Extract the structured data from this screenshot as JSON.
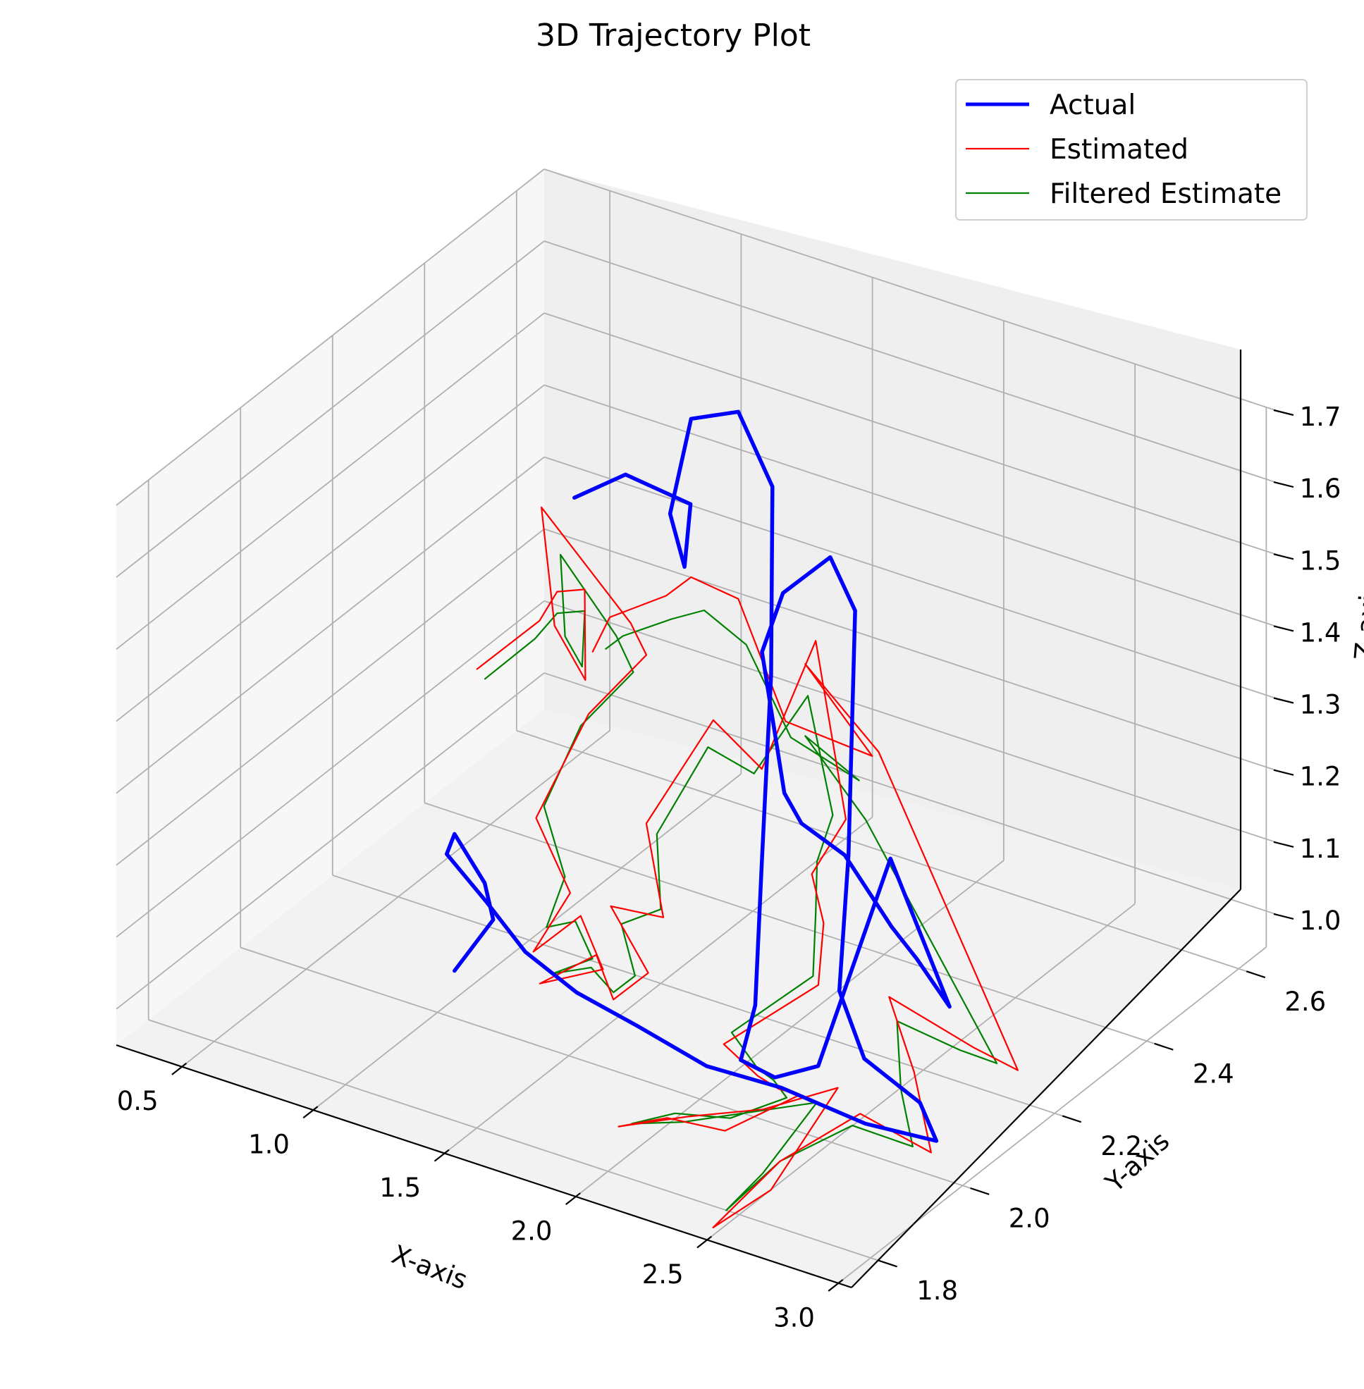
{
  "chart_data": {
    "type": "line",
    "projection": "3d",
    "title": "3D Trajectory Plot",
    "xlabel": "X-axis",
    "ylabel": "Y-axis",
    "zlabel": "Z-axis",
    "xlim": [
      0.25,
      3.05
    ],
    "ylim": [
      1.73,
      2.66
    ],
    "zlim": [
      0.95,
      1.7
    ],
    "x_ticks": [
      "0.5",
      "1.0",
      "1.5",
      "2.0",
      "2.5",
      "3.0"
    ],
    "y_ticks": [
      "1.8",
      "2.0",
      "2.2",
      "2.4",
      "2.6"
    ],
    "z_ticks": [
      "1.0",
      "1.1",
      "1.2",
      "1.3",
      "1.4",
      "1.5",
      "1.6",
      "1.7"
    ],
    "grid": true,
    "legend_position": "top-right",
    "series": [
      {
        "name": "Actual",
        "color": "#0000ff",
        "linewidth": "thick",
        "points": [
          [
            0.47,
            2.6,
            1.3
          ],
          [
            0.7,
            2.58,
            1.37
          ],
          [
            1.0,
            2.55,
            1.38
          ],
          [
            1.1,
            2.48,
            1.34
          ],
          [
            1.15,
            2.42,
            1.45
          ],
          [
            1.3,
            2.38,
            1.62
          ],
          [
            1.55,
            2.34,
            1.68
          ],
          [
            1.75,
            2.3,
            1.62
          ],
          [
            1.85,
            2.24,
            1.4
          ],
          [
            1.92,
            2.18,
            1.18
          ],
          [
            2.0,
            2.12,
            1.02
          ],
          [
            2.05,
            2.06,
            0.98
          ],
          [
            2.25,
            2.02,
            1.0
          ],
          [
            2.45,
            2.0,
            1.05
          ],
          [
            2.55,
            2.1,
            1.3
          ],
          [
            2.6,
            2.2,
            1.05
          ],
          [
            2.3,
            2.3,
            1.03
          ],
          [
            2.1,
            2.36,
            1.02
          ],
          [
            1.85,
            2.4,
            1.07
          ],
          [
            1.65,
            2.42,
            1.08
          ],
          [
            1.55,
            2.44,
            1.1
          ],
          [
            1.5,
            2.42,
            1.3
          ],
          [
            1.65,
            2.38,
            1.42
          ],
          [
            1.9,
            2.34,
            1.52
          ],
          [
            2.1,
            2.28,
            1.5
          ],
          [
            2.18,
            2.22,
            1.2
          ],
          [
            2.25,
            2.16,
            1.05
          ],
          [
            2.45,
            2.1,
            1.01
          ],
          [
            2.75,
            2.05,
            1.01
          ],
          [
            2.9,
            2.0,
            1.0
          ],
          [
            2.7,
            1.96,
            1.02
          ],
          [
            2.45,
            1.92,
            1.06
          ],
          [
            2.2,
            1.9,
            1.07
          ],
          [
            1.9,
            1.92,
            1.08
          ],
          [
            1.6,
            1.96,
            1.07
          ],
          [
            1.3,
            2.02,
            1.06
          ],
          [
            1.1,
            2.05,
            1.09
          ],
          [
            1.0,
            2.02,
            1.16
          ],
          [
            1.1,
            1.98,
            1.22
          ],
          [
            1.25,
            1.96,
            1.18
          ],
          [
            1.3,
            1.95,
            1.14
          ],
          [
            1.1,
            1.98,
            1.03
          ]
        ]
      },
      {
        "name": "Estimated",
        "color": "#ff0000",
        "linewidth": "thin",
        "points": [
          [
            0.45,
            2.4,
            1.16
          ],
          [
            0.6,
            2.45,
            1.22
          ],
          [
            0.72,
            2.42,
            1.29
          ],
          [
            0.86,
            2.4,
            1.32
          ],
          [
            0.95,
            2.35,
            1.23
          ],
          [
            0.78,
            2.38,
            1.27
          ],
          [
            0.66,
            2.42,
            1.4
          ],
          [
            1.0,
            2.42,
            1.28
          ],
          [
            1.2,
            2.34,
            1.3
          ],
          [
            1.05,
            2.3,
            1.22
          ],
          [
            0.92,
            2.26,
            1.08
          ],
          [
            1.12,
            2.22,
            1.02
          ],
          [
            1.05,
            2.18,
            0.95
          ],
          [
            1.3,
            2.14,
            1.05
          ],
          [
            1.42,
            2.12,
            1.0
          ],
          [
            1.25,
            2.08,
            0.98
          ],
          [
            1.5,
            2.06,
            1.06
          ],
          [
            1.6,
            2.04,
            1.02
          ],
          [
            1.75,
            2.03,
            1.08
          ],
          [
            1.52,
            2.08,
            1.12
          ],
          [
            1.65,
            2.12,
            1.1
          ],
          [
            1.48,
            2.18,
            1.18
          ],
          [
            1.7,
            2.2,
            1.34
          ],
          [
            1.85,
            2.22,
            1.28
          ],
          [
            1.95,
            2.28,
            1.44
          ],
          [
            2.1,
            2.26,
            1.22
          ],
          [
            1.9,
            2.3,
            1.1
          ],
          [
            2.05,
            2.24,
            1.08
          ],
          [
            2.1,
            2.2,
            1.02
          ],
          [
            1.95,
            2.08,
            0.98
          ],
          [
            2.15,
            2.04,
            0.98
          ],
          [
            2.3,
            2.0,
            1.0
          ],
          [
            2.45,
            1.96,
            1.03
          ],
          [
            2.2,
            1.94,
            0.96
          ],
          [
            2.05,
            1.9,
            0.98
          ],
          [
            1.9,
            1.88,
            0.96
          ],
          [
            2.2,
            1.86,
            1.02
          ],
          [
            2.45,
            1.88,
            1.05
          ],
          [
            2.7,
            1.9,
            1.1
          ],
          [
            2.55,
            1.84,
            0.97
          ],
          [
            2.4,
            1.8,
            0.92
          ],
          [
            2.55,
            1.86,
            1.0
          ],
          [
            2.75,
            1.92,
            1.06
          ],
          [
            2.95,
            1.96,
            1.01
          ],
          [
            2.85,
            1.98,
            1.1
          ],
          [
            2.65,
            2.04,
            1.15
          ],
          [
            2.9,
            2.08,
            1.09
          ],
          [
            3.0,
            2.12,
            1.05
          ],
          [
            2.4,
            2.16,
            1.4
          ],
          [
            2.05,
            2.2,
            1.46
          ],
          [
            2.2,
            2.26,
            1.32
          ],
          [
            1.8,
            2.3,
            1.3
          ],
          [
            1.55,
            2.34,
            1.42
          ],
          [
            1.3,
            2.38,
            1.4
          ],
          [
            1.1,
            2.44,
            1.32
          ],
          [
            0.85,
            2.46,
            1.25
          ],
          [
            0.75,
            2.48,
            1.18
          ]
        ]
      },
      {
        "name": "Filtered Estimate",
        "color": "#008000",
        "linewidth": "thin",
        "points": [
          [
            0.48,
            2.4,
            1.15
          ],
          [
            0.6,
            2.44,
            1.2
          ],
          [
            0.72,
            2.42,
            1.26
          ],
          [
            0.86,
            2.4,
            1.29
          ],
          [
            0.92,
            2.36,
            1.24
          ],
          [
            0.82,
            2.38,
            1.26
          ],
          [
            0.75,
            2.41,
            1.35
          ],
          [
            0.98,
            2.4,
            1.27
          ],
          [
            1.15,
            2.34,
            1.27
          ],
          [
            1.02,
            2.3,
            1.2
          ],
          [
            0.95,
            2.26,
            1.1
          ],
          [
            1.1,
            2.22,
            1.04
          ],
          [
            1.1,
            2.18,
            0.99
          ],
          [
            1.28,
            2.14,
            1.04
          ],
          [
            1.38,
            2.12,
            1.01
          ],
          [
            1.3,
            2.08,
            1.0
          ],
          [
            1.48,
            2.06,
            1.04
          ],
          [
            1.6,
            2.04,
            1.03
          ],
          [
            1.7,
            2.03,
            1.07
          ],
          [
            1.56,
            2.08,
            1.1
          ],
          [
            1.64,
            2.12,
            1.11
          ],
          [
            1.52,
            2.18,
            1.17
          ],
          [
            1.68,
            2.2,
            1.3
          ],
          [
            1.82,
            2.22,
            1.27
          ],
          [
            1.92,
            2.28,
            1.36
          ],
          [
            2.05,
            2.26,
            1.22
          ],
          [
            1.92,
            2.3,
            1.12
          ],
          [
            2.02,
            2.24,
            1.09
          ],
          [
            2.08,
            2.2,
            1.03
          ],
          [
            1.98,
            2.08,
            1.0
          ],
          [
            2.15,
            2.04,
            0.99
          ],
          [
            2.28,
            2.0,
            1.01
          ],
          [
            2.4,
            1.96,
            1.02
          ],
          [
            2.22,
            1.94,
            0.98
          ],
          [
            2.08,
            1.9,
            0.99
          ],
          [
            1.95,
            1.88,
            0.97
          ],
          [
            2.18,
            1.86,
            1.01
          ],
          [
            2.4,
            1.88,
            1.04
          ],
          [
            2.62,
            1.9,
            1.07
          ],
          [
            2.52,
            1.84,
            0.99
          ],
          [
            2.45,
            1.8,
            0.95
          ],
          [
            2.55,
            1.86,
            1.0
          ],
          [
            2.72,
            1.92,
            1.04
          ],
          [
            2.88,
            1.96,
            1.01
          ],
          [
            2.8,
            1.98,
            1.07
          ],
          [
            2.68,
            2.04,
            1.12
          ],
          [
            2.85,
            2.08,
            1.08
          ],
          [
            2.92,
            2.12,
            1.05
          ],
          [
            2.35,
            2.16,
            1.3
          ],
          [
            2.05,
            2.2,
            1.36
          ],
          [
            2.15,
            2.26,
            1.28
          ],
          [
            1.82,
            2.3,
            1.28
          ],
          [
            1.58,
            2.34,
            1.36
          ],
          [
            1.35,
            2.38,
            1.36
          ],
          [
            1.12,
            2.44,
            1.29
          ],
          [
            0.9,
            2.46,
            1.23
          ],
          [
            0.8,
            2.48,
            1.19
          ]
        ]
      }
    ]
  }
}
